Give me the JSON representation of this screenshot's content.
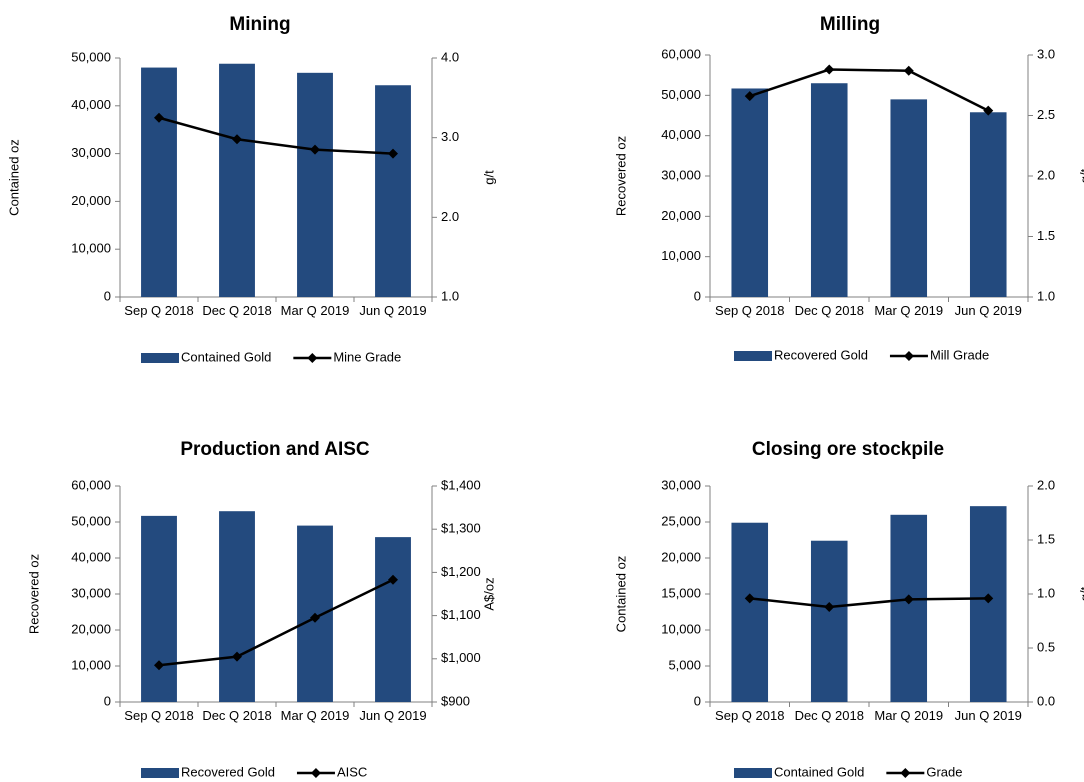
{
  "chart_data": [
    {
      "type": "bar_line",
      "title": "Mining",
      "y_label": "Contained oz",
      "y2_label": "g/t",
      "categories": [
        "Sep Q 2018",
        "Dec Q 2018",
        "Mar Q 2019",
        "Jun Q 2019"
      ],
      "series": [
        {
          "name": "Contained Gold",
          "type": "bar",
          "color": "#234a7e",
          "values": [
            48000,
            48800,
            46900,
            44300
          ]
        },
        {
          "name": "Mine Grade",
          "type": "line",
          "axis": "y2",
          "color": "#000000",
          "values": [
            3.25,
            2.98,
            2.85,
            2.8
          ]
        }
      ],
      "ylim": [
        0,
        50000
      ],
      "yticks": [
        0,
        {
          "value": 10000,
          "label": "10,000"
        },
        {
          "value": 20000,
          "label": "20,000"
        },
        {
          "value": 30000,
          "label": "30,000"
        },
        {
          "value": 40000,
          "label": "40,000"
        },
        {
          "value": 50000,
          "label": "50,000"
        }
      ],
      "y2lim": [
        1,
        4
      ],
      "y2ticks": [
        {
          "value": 1,
          "label": "1.0"
        },
        {
          "value": 2,
          "label": "2.0"
        },
        {
          "value": 3,
          "label": "3.0"
        },
        {
          "value": 4,
          "label": "4.0"
        }
      ]
    },
    {
      "type": "bar_line",
      "title": "Milling",
      "y_label": "Recovered  oz",
      "y2_label": "g/t",
      "categories": [
        "Sep Q 2018",
        "Dec Q 2018",
        "Mar Q 2019",
        "Jun Q 2019"
      ],
      "series": [
        {
          "name": "Recovered Gold",
          "type": "bar",
          "color": "#234a7e",
          "values": [
            51700,
            53000,
            49000,
            45800
          ]
        },
        {
          "name": "Mill Grade",
          "type": "line",
          "axis": "y2",
          "color": "#000000",
          "values": [
            2.66,
            2.88,
            2.87,
            2.54
          ]
        }
      ],
      "ylim": [
        0,
        60000
      ],
      "yticks": [
        0,
        {
          "value": 10000,
          "label": "10,000"
        },
        {
          "value": 20000,
          "label": "20,000"
        },
        {
          "value": 30000,
          "label": "30,000"
        },
        {
          "value": 40000,
          "label": "40,000"
        },
        {
          "value": 50000,
          "label": "50,000"
        },
        {
          "value": 60000,
          "label": "60,000"
        }
      ],
      "y2lim": [
        1,
        3
      ],
      "y2ticks": [
        {
          "value": 1,
          "label": "1.0"
        },
        1.5,
        {
          "value": 2,
          "label": "2.0"
        },
        2.5,
        {
          "value": 3,
          "label": "3.0"
        }
      ]
    },
    {
      "type": "bar_line",
      "title": "Production and AISC",
      "y_label": "Recovered  oz",
      "y2_label": "A$/oz",
      "categories": [
        "Sep Q 2018",
        "Dec Q 2018",
        "Mar Q 2019",
        "Jun Q 2019"
      ],
      "series": [
        {
          "name": "Recovered Gold",
          "type": "bar",
          "color": "#234a7e",
          "values": [
            51700,
            53000,
            49000,
            45800
          ]
        },
        {
          "name": "AISC",
          "type": "line",
          "axis": "y2",
          "color": "#000000",
          "values": [
            985,
            1005,
            1095,
            1183
          ]
        }
      ],
      "ylim": [
        0,
        60000
      ],
      "yticks": [
        0,
        {
          "value": 10000,
          "label": "10,000"
        },
        {
          "value": 20000,
          "label": "20,000"
        },
        {
          "value": 30000,
          "label": "30,000"
        },
        {
          "value": 40000,
          "label": "40,000"
        },
        {
          "value": 50000,
          "label": "50,000"
        },
        {
          "value": 60000,
          "label": "60,000"
        }
      ],
      "y2lim": [
        900,
        1400
      ],
      "y2ticks": [
        {
          "value": 900,
          "label": "$900"
        },
        {
          "value": 1000,
          "label": "$1,000"
        },
        {
          "value": 1100,
          "label": "$1,100"
        },
        {
          "value": 1200,
          "label": "$1,200"
        },
        {
          "value": 1300,
          "label": "$1,300"
        },
        {
          "value": 1400,
          "label": "$1,400"
        }
      ]
    },
    {
      "type": "bar_line",
      "title": "Closing ore stockpile",
      "y_label": "Contained oz",
      "y2_label": "g/t",
      "categories": [
        "Sep Q 2018",
        "Dec Q 2018",
        "Mar Q 2019",
        "Jun Q 2019"
      ],
      "series": [
        {
          "name": "Contained Gold",
          "type": "bar",
          "color": "#234a7e",
          "values": [
            24900,
            22400,
            26000,
            27200
          ]
        },
        {
          "name": "Grade",
          "type": "line",
          "axis": "y2",
          "color": "#000000",
          "values": [
            0.96,
            0.88,
            0.95,
            0.96
          ]
        }
      ],
      "ylim": [
        0,
        30000
      ],
      "yticks": [
        0,
        {
          "value": 5000,
          "label": "5,000"
        },
        {
          "value": 10000,
          "label": "10,000"
        },
        {
          "value": 15000,
          "label": "15,000"
        },
        {
          "value": 20000,
          "label": "20,000"
        },
        {
          "value": 25000,
          "label": "25,000"
        },
        {
          "value": 30000,
          "label": "30,000"
        }
      ],
      "y2lim": [
        0,
        2
      ],
      "y2ticks": [
        {
          "value": 0,
          "label": "0.0"
        },
        0.5,
        {
          "value": 1,
          "label": "1.0"
        },
        1.5,
        {
          "value": 2,
          "label": "2.0"
        }
      ]
    }
  ]
}
